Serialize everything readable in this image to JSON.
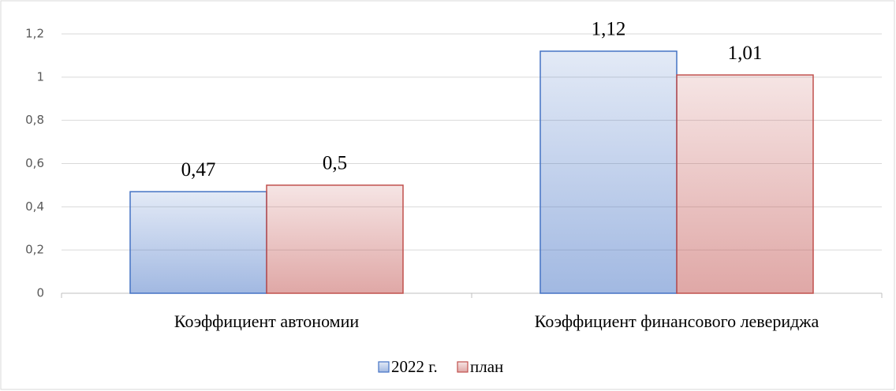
{
  "chart_data": {
    "type": "bar",
    "categories": [
      "Коэффициент автономии",
      "Коэффициент финансового левериджа"
    ],
    "series": [
      {
        "name": "2022 г.",
        "color": "#4472c4",
        "values": [
          0.47,
          1.12
        ],
        "value_labels": [
          "0,47",
          "1,12"
        ]
      },
      {
        "name": "план",
        "color": "#c0504d",
        "values": [
          0.5,
          1.01
        ],
        "value_labels": [
          "0,5",
          "1,01"
        ]
      }
    ],
    "ylim": [
      0,
      1.2
    ],
    "yticks": [
      0,
      {
        "value": 0.2,
        "label": "0,2"
      },
      {
        "value": 0.4,
        "label": "0,4"
      },
      {
        "value": 0.6,
        "label": "0,6"
      },
      {
        "value": 0.8,
        "label": "0,8"
      },
      1,
      {
        "value": 1.2,
        "label": "1,2"
      }
    ],
    "grid": true,
    "legend": "bottom"
  }
}
